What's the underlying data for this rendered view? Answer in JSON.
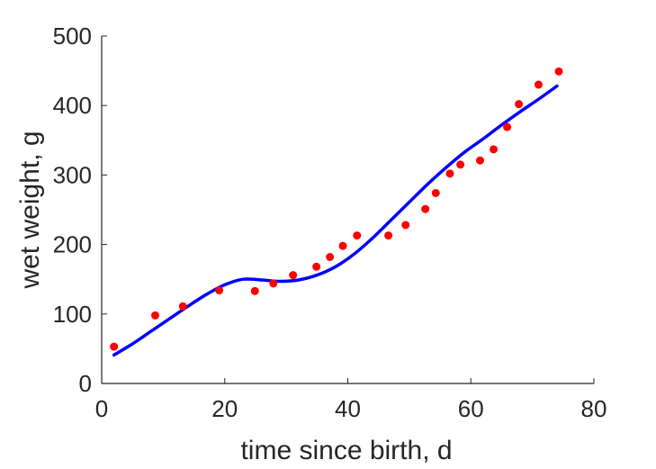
{
  "chart_data": {
    "type": "scatter",
    "xlabel": "time since birth, d",
    "ylabel": "wet weight, g",
    "xlim": [
      0,
      80
    ],
    "ylim": [
      0,
      500
    ],
    "xticks": [
      0,
      20,
      40,
      60,
      80
    ],
    "yticks": [
      0,
      100,
      200,
      300,
      400,
      500
    ],
    "grid": false,
    "box": "open (left and bottom axes only)",
    "series": [
      {
        "kind": "scatter",
        "color": "#ff0000",
        "x": [
          2,
          8.7,
          13.2,
          19.1,
          24.9,
          27.9,
          31.1,
          34.9,
          37.1,
          39.2,
          41.5,
          46.6,
          49.4,
          52.6,
          54.3,
          56.6,
          58.3,
          61.5,
          63.7,
          65.9,
          67.8,
          71,
          74.3
        ],
        "y": [
          53,
          98,
          111,
          134,
          133,
          144,
          156,
          168,
          182,
          198,
          213,
          213,
          228,
          251,
          274,
          302,
          315,
          321,
          337,
          369,
          402,
          430,
          449
        ]
      },
      {
        "kind": "line",
        "color": "#0000ff",
        "x": [
          2,
          5,
          8,
          11,
          14,
          17,
          20,
          23,
          26,
          29,
          32,
          35,
          38,
          41,
          44,
          47,
          50,
          53,
          56,
          59,
          62,
          65,
          68,
          71,
          74
        ],
        "y": [
          41,
          57,
          75,
          93,
          111,
          128,
          142,
          150,
          149,
          147,
          149,
          156,
          168,
          186,
          209,
          235,
          261,
          287,
          311,
          333,
          352,
          372,
          391,
          409,
          428
        ]
      }
    ]
  }
}
